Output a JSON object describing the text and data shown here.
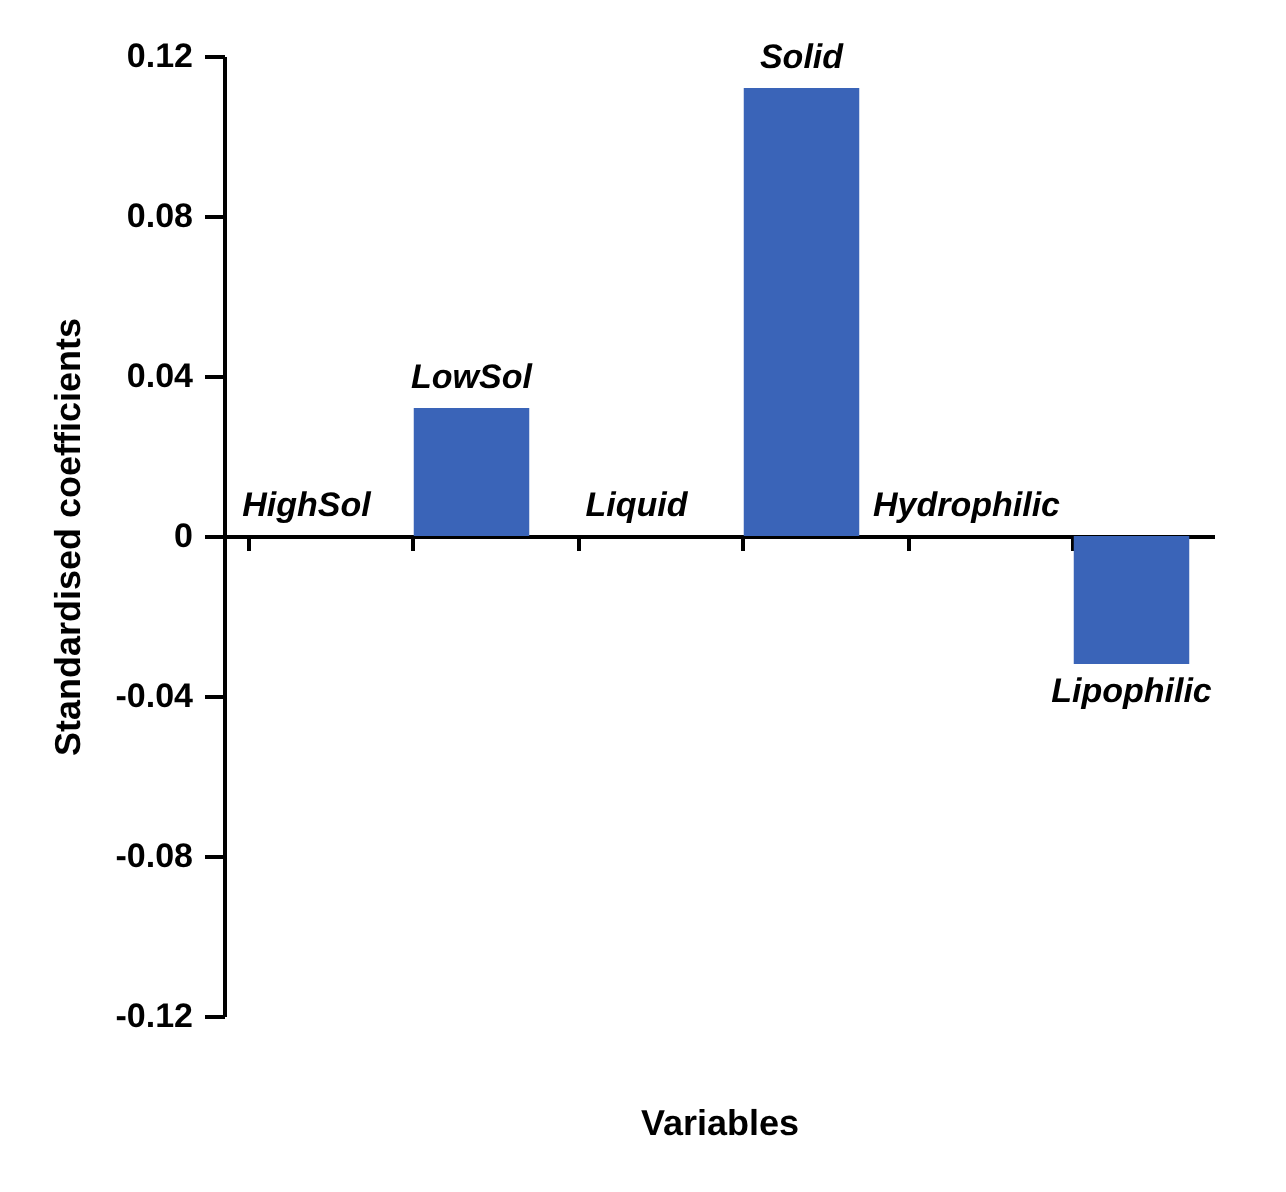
{
  "chart_data": {
    "type": "bar",
    "xlabel": "Variables",
    "ylabel": "Standardised coefficients",
    "categories": [
      "HighSol",
      "LowSol",
      "Liquid",
      "Solid",
      "Hydrophilic",
      "Lipophilic"
    ],
    "values": [
      0,
      0.032,
      0,
      0.112,
      0,
      -0.032
    ],
    "color": "#3a64b8",
    "ylim": [
      -0.12,
      0.12
    ],
    "yticks": [
      -0.12,
      -0.08,
      -0.04,
      0,
      0.04,
      0.08,
      0.12
    ],
    "grid": false,
    "tick_labels": "y"
  }
}
